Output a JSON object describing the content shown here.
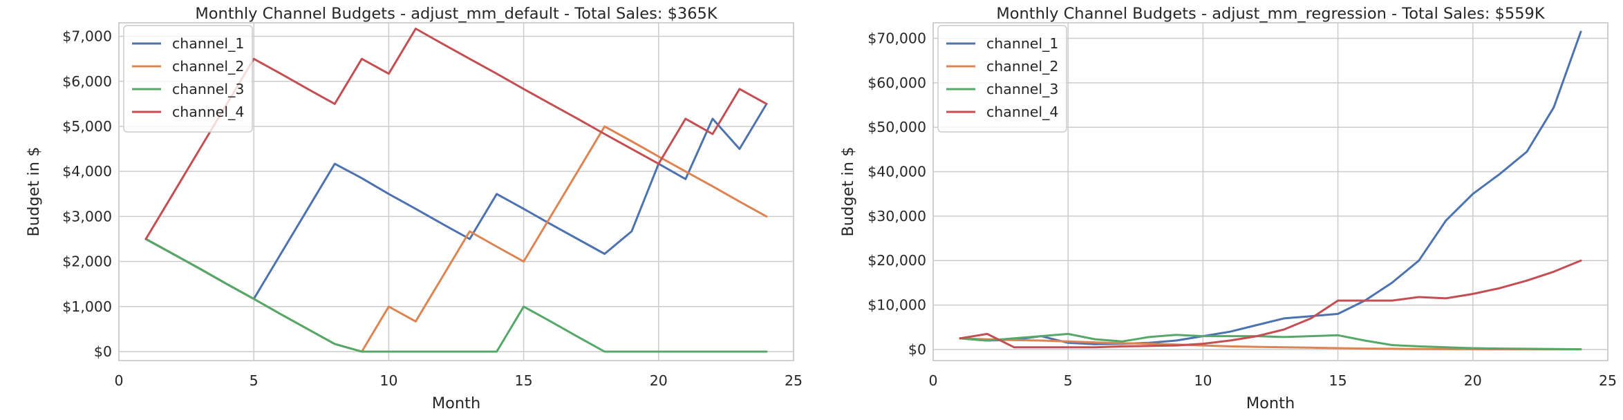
{
  "chart_data": [
    {
      "type": "line",
      "title": "Monthly Channel Budgets - adjust_mm_default - Total Sales: $365K",
      "xlabel": "Month",
      "ylabel": "Budget in $",
      "xlim": [
        0,
        25
      ],
      "ylim": [
        -200,
        7300
      ],
      "xticks": [
        0,
        5,
        10,
        15,
        20,
        25
      ],
      "yticks": [
        0,
        1000,
        2000,
        3000,
        4000,
        5000,
        6000,
        7000
      ],
      "ytick_labels": [
        "$0",
        "$1,000",
        "$2,000",
        "$3,000",
        "$4,000",
        "$5,000",
        "$6,000",
        "$7,000"
      ],
      "grid": true,
      "legend_position": "top-left",
      "x": [
        1,
        2,
        3,
        4,
        5,
        6,
        7,
        8,
        9,
        10,
        11,
        12,
        13,
        14,
        15,
        16,
        17,
        18,
        19,
        20,
        21,
        22,
        23,
        24
      ],
      "series": [
        {
          "name": "channel_1",
          "color": "#4c72b0",
          "values": [
            2500,
            2170,
            1840,
            1500,
            1170,
            2170,
            3170,
            4170,
            3850,
            3500,
            3170,
            2830,
            2500,
            3500,
            3170,
            2830,
            2500,
            2170,
            2670,
            4170,
            3830,
            5170,
            4500,
            5500
          ]
        },
        {
          "name": "channel_2",
          "color": "#dd8452",
          "values": [
            2500,
            2170,
            1840,
            1500,
            1170,
            830,
            500,
            170,
            0,
            1000,
            670,
            1670,
            2670,
            2330,
            2000,
            3000,
            4000,
            5000,
            4670,
            4330,
            4000,
            3670,
            3330,
            3000
          ]
        },
        {
          "name": "channel_3",
          "color": "#55a868",
          "values": [
            2500,
            2170,
            1840,
            1500,
            1170,
            830,
            500,
            170,
            0,
            0,
            0,
            0,
            0,
            0,
            1000,
            670,
            330,
            0,
            0,
            0,
            0,
            0,
            0,
            0
          ]
        },
        {
          "name": "channel_4",
          "color": "#c44e52",
          "values": [
            2500,
            3500,
            4500,
            5500,
            6500,
            6170,
            5830,
            5500,
            6500,
            6170,
            7170,
            6830,
            6500,
            6170,
            5830,
            5500,
            5170,
            4830,
            4500,
            4170,
            5170,
            4830,
            5830,
            5500
          ]
        }
      ]
    },
    {
      "type": "line",
      "title": "Monthly Channel Budgets - adjust_mm_regression - Total Sales: $559K",
      "xlabel": "Month",
      "ylabel": "Budget in $",
      "xlim": [
        0,
        25
      ],
      "ylim": [
        -2500,
        73500
      ],
      "xticks": [
        0,
        5,
        10,
        15,
        20,
        25
      ],
      "yticks": [
        0,
        10000,
        20000,
        30000,
        40000,
        50000,
        60000,
        70000
      ],
      "ytick_labels": [
        "$0",
        "$10,000",
        "$20,000",
        "$30,000",
        "$40,000",
        "$50,000",
        "$60,000",
        "$70,000"
      ],
      "grid": true,
      "legend_position": "top-left",
      "x": [
        1,
        2,
        3,
        4,
        5,
        6,
        7,
        8,
        9,
        10,
        11,
        12,
        13,
        14,
        15,
        16,
        17,
        18,
        19,
        20,
        21,
        22,
        23,
        24
      ],
      "series": [
        {
          "name": "channel_1",
          "color": "#4c72b0",
          "values": [
            2500,
            2000,
            2200,
            3000,
            1500,
            1200,
            1300,
            1500,
            2000,
            3000,
            4000,
            5500,
            7000,
            7500,
            8000,
            11000,
            15000,
            20000,
            29000,
            35000,
            39500,
            44500,
            54500,
            71500
          ]
        },
        {
          "name": "channel_2",
          "color": "#dd8452",
          "values": [
            2500,
            2300,
            2100,
            2000,
            1800,
            1600,
            1400,
            1300,
            1100,
            900,
            700,
            600,
            500,
            400,
            300,
            200,
            150,
            100,
            80,
            60,
            50,
            40,
            30,
            20
          ]
        },
        {
          "name": "channel_3",
          "color": "#55a868",
          "values": [
            2500,
            2000,
            2500,
            3000,
            3500,
            2300,
            1800,
            2800,
            3300,
            3000,
            3000,
            3000,
            2800,
            3000,
            3200,
            2000,
            1000,
            700,
            500,
            300,
            200,
            150,
            100,
            50
          ]
        },
        {
          "name": "channel_4",
          "color": "#c44e52",
          "values": [
            2500,
            3500,
            500,
            500,
            500,
            500,
            700,
            800,
            900,
            1300,
            2000,
            3000,
            4500,
            7000,
            11000,
            11000,
            11000,
            11800,
            11500,
            12500,
            13800,
            15500,
            17500,
            20000
          ]
        }
      ]
    }
  ]
}
